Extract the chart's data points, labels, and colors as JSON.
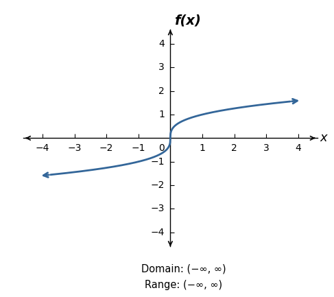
{
  "title": "f(x)",
  "xlabel": "x",
  "xlim": [
    -4.6,
    4.6
  ],
  "ylim": [
    -4.6,
    4.6
  ],
  "xticks": [
    -4,
    -3,
    -2,
    -1,
    1,
    2,
    3,
    4
  ],
  "yticks": [
    -4,
    -3,
    -2,
    -1,
    1,
    2,
    3,
    4
  ],
  "curve_color": "#336699",
  "curve_linewidth": 2.0,
  "x_start": -3.75,
  "x_end": 3.75,
  "annotation_domain": "Domain: (−∞, ∞)",
  "annotation_range": "Range: (−∞, ∞)",
  "background_color": "#ffffff",
  "axis_color": "#000000",
  "tick_label_fontsize": 10,
  "axis_label_fontsize": 13,
  "title_fontsize": 14
}
